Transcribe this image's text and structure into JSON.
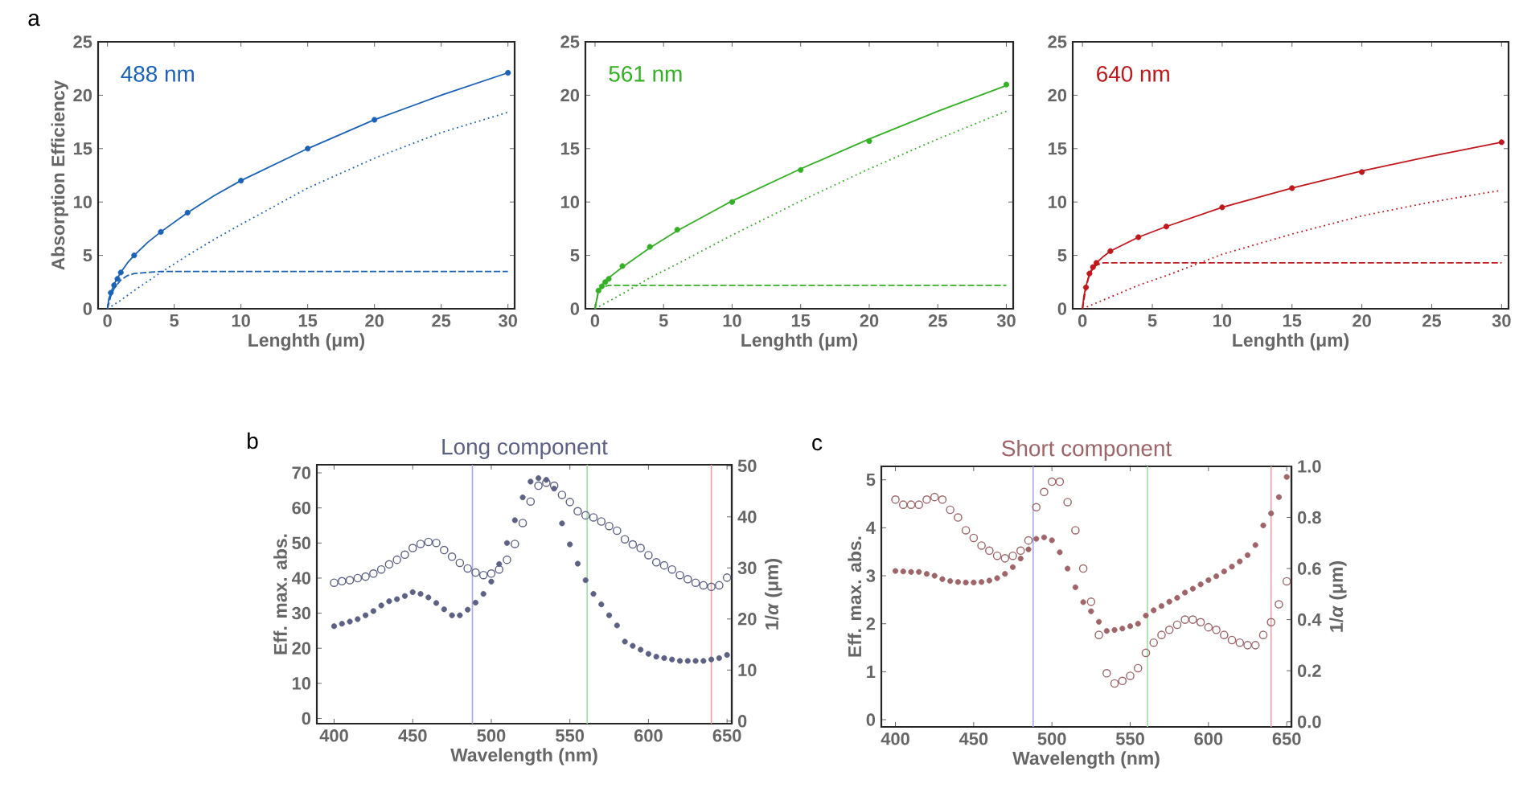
{
  "chart_data": [
    {
      "type": "line",
      "title": "488 nm",
      "xlabel": "Lenghth (μm)",
      "ylabel": "Absorption Efficiency",
      "annotations": [
        "a"
      ],
      "xlim": [
        -0.7,
        30.5
      ],
      "ylim": [
        0,
        25
      ],
      "xticks": [
        0,
        5,
        10,
        15,
        20,
        25,
        30
      ],
      "yticks": [
        0,
        5,
        10,
        15,
        20,
        25
      ],
      "series": [
        {
          "type": "line",
          "line_style": "solid",
          "color": "#1a62b8",
          "x": [
            0,
            0.1,
            0.25,
            0.5,
            0.75,
            1,
            1.5,
            2,
            3,
            4,
            6,
            8,
            10,
            15,
            20,
            25,
            30
          ],
          "values": [
            0,
            0.9,
            1.5,
            2.3,
            2.9,
            3.4,
            4.3,
            5.0,
            6.2,
            7.2,
            9.0,
            10.6,
            12.0,
            15.0,
            17.7,
            20.0,
            22.1
          ]
        },
        {
          "type": "line",
          "line_style": "dashed",
          "color": "#1a62b8",
          "x": [
            0,
            0.25,
            0.5,
            1,
            1.5,
            2,
            3,
            4,
            30
          ],
          "values": [
            0,
            1.2,
            1.9,
            2.7,
            3.1,
            3.3,
            3.4,
            3.5,
            3.5
          ]
        },
        {
          "type": "line",
          "line_style": "dotted",
          "color": "#1a62b8",
          "x": [
            0,
            1,
            2,
            4,
            6,
            8,
            10,
            15,
            20,
            25,
            30
          ],
          "values": [
            0,
            0.8,
            1.7,
            3.4,
            5.0,
            6.5,
            7.9,
            11.3,
            14.1,
            16.5,
            18.4
          ]
        },
        {
          "type": "scatter",
          "marker": "circle",
          "color": "#1a62b8",
          "x": [
            0.25,
            0.5,
            0.75,
            1,
            2,
            4,
            6,
            10,
            15,
            20,
            30
          ],
          "values": [
            1.5,
            2.2,
            2.8,
            3.4,
            5.0,
            7.2,
            9.0,
            12.0,
            15.0,
            17.7,
            22.1
          ]
        }
      ]
    },
    {
      "type": "line",
      "title": "561 nm",
      "xlabel": "Lenghth (μm)",
      "xlim": [
        -0.7,
        30.5
      ],
      "ylim": [
        0,
        25
      ],
      "xticks": [
        0,
        5,
        10,
        15,
        20,
        25,
        30
      ],
      "yticks": [
        0,
        5,
        10,
        15,
        20,
        25
      ],
      "series": [
        {
          "type": "line",
          "line_style": "solid",
          "color": "#33b024",
          "x": [
            0,
            0.25,
            0.5,
            0.75,
            1,
            2,
            4,
            6,
            10,
            15,
            20,
            25,
            30
          ],
          "values": [
            0,
            1.7,
            2.2,
            2.6,
            2.9,
            3.9,
            5.7,
            7.3,
            10.1,
            13.1,
            15.9,
            18.5,
            20.9
          ]
        },
        {
          "type": "line",
          "line_style": "dashed",
          "color": "#33b024",
          "x": [
            0,
            0.25,
            0.5,
            1,
            1.5,
            30
          ],
          "values": [
            0,
            1.6,
            2.0,
            2.2,
            2.2,
            2.2
          ]
        },
        {
          "type": "line",
          "line_style": "dotted",
          "color": "#33b024",
          "x": [
            0,
            1,
            2,
            4,
            6,
            10,
            15,
            20,
            25,
            30
          ],
          "values": [
            0,
            0.7,
            1.4,
            2.9,
            4.2,
            6.9,
            10.1,
            13.1,
            15.9,
            18.5
          ]
        },
        {
          "type": "scatter",
          "marker": "circle",
          "color": "#33b024",
          "x": [
            0.25,
            0.5,
            0.75,
            1,
            2,
            4,
            6,
            10,
            15,
            20,
            30
          ],
          "values": [
            1.7,
            2.1,
            2.5,
            2.8,
            4.0,
            5.8,
            7.4,
            10.0,
            13.0,
            15.7,
            21.0
          ]
        }
      ]
    },
    {
      "type": "line",
      "title": "640 nm",
      "xlabel": "Lenghth (μm)",
      "xlim": [
        -0.7,
        30.5
      ],
      "ylim": [
        0,
        25
      ],
      "xticks": [
        0,
        5,
        10,
        15,
        20,
        25,
        30
      ],
      "yticks": [
        0,
        5,
        10,
        15,
        20,
        25
      ],
      "series": [
        {
          "type": "line",
          "line_style": "solid",
          "color": "#c0171b",
          "x": [
            0,
            0.1,
            0.25,
            0.5,
            0.75,
            1,
            1.5,
            2,
            4,
            6,
            10,
            15,
            20,
            25,
            30
          ],
          "values": [
            0,
            1.2,
            2.1,
            3.3,
            3.9,
            4.3,
            4.9,
            5.4,
            6.7,
            7.7,
            9.5,
            11.3,
            12.9,
            14.3,
            15.6
          ]
        },
        {
          "type": "line",
          "line_style": "dashed",
          "color": "#c0171b",
          "x": [
            0,
            0.25,
            0.5,
            0.75,
            1,
            1.5,
            30
          ],
          "values": [
            0,
            2.0,
            3.2,
            3.8,
            4.1,
            4.3,
            4.3
          ]
        },
        {
          "type": "line",
          "line_style": "dotted",
          "color": "#c0171b",
          "x": [
            0,
            2,
            4,
            6,
            8,
            10,
            15,
            20,
            25,
            30
          ],
          "values": [
            0,
            1.1,
            2.2,
            3.1,
            4.1,
            5.1,
            7.0,
            8.7,
            10.0,
            11.1
          ]
        },
        {
          "type": "scatter",
          "marker": "circle",
          "color": "#c0171b",
          "x": [
            0.25,
            0.5,
            0.75,
            1,
            2,
            4,
            6,
            10,
            15,
            20,
            30
          ],
          "values": [
            2.0,
            3.3,
            3.9,
            4.3,
            5.4,
            6.7,
            7.7,
            9.5,
            11.3,
            12.8,
            15.6
          ]
        }
      ]
    },
    {
      "type": "scatter",
      "title": "Long component",
      "xlabel": "Wavelength (nm)",
      "ylabel": "Eff. max. abs.",
      "y2label": "1/*α* (μm)",
      "annotations": [
        "b"
      ],
      "marker": "circle",
      "xlim": [
        389,
        653
      ],
      "ylim": [
        -1.5,
        72.3
      ],
      "y2lim": [
        -0.5,
        50.2
      ],
      "xticks": [
        400,
        450,
        500,
        550,
        600,
        650
      ],
      "yticks": [
        0,
        10,
        20,
        30,
        40,
        50,
        60,
        70
      ],
      "y2ticks": [
        0,
        10,
        20,
        30,
        40,
        50
      ],
      "x": [
        400,
        405,
        410,
        415,
        420,
        425,
        430,
        435,
        440,
        445,
        450,
        455,
        460,
        465,
        470,
        475,
        480,
        485,
        490,
        495,
        500,
        505,
        510,
        515,
        520,
        525,
        530,
        535,
        540,
        545,
        550,
        555,
        560,
        565,
        570,
        575,
        580,
        585,
        590,
        595,
        600,
        605,
        610,
        615,
        620,
        625,
        630,
        635,
        640,
        645,
        650
      ],
      "ref_lines": [
        {
          "axis": "x",
          "value": 488,
          "color": "#a8a8e8"
        },
        {
          "axis": "x",
          "value": 561,
          "color": "#a0e0a0"
        },
        {
          "axis": "x",
          "value": 640,
          "color": "#e8a0a0"
        }
      ],
      "series": [
        {
          "color": "#5c6184",
          "axis": "y2",
          "values": [
            27.1,
            27.4,
            27.6,
            28.0,
            28.3,
            28.9,
            29.7,
            30.7,
            31.6,
            32.6,
            33.9,
            34.7,
            35.1,
            34.9,
            33.5,
            32.2,
            31.0,
            29.9,
            29.1,
            28.6,
            28.9,
            29.7,
            31.6,
            34.7,
            38.8,
            43.0,
            46.1,
            46.7,
            46.1,
            44.3,
            42.9,
            41.1,
            40.3,
            39.9,
            39.1,
            38.2,
            37.3,
            35.6,
            34.6,
            33.9,
            32.5,
            31.1,
            30.5,
            29.7,
            28.6,
            27.8,
            27.1,
            26.6,
            26.3,
            26.6,
            28.1
          ]
        },
        {
          "color": "#5c6184",
          "values": [
            26.3,
            27.0,
            27.6,
            28.3,
            29.4,
            30.6,
            32.2,
            33.4,
            34.0,
            34.9,
            36.0,
            35.5,
            34.5,
            32.9,
            31.1,
            29.4,
            29.4,
            31.0,
            33.0,
            35.5,
            39.0,
            44.0,
            50.0,
            56.5,
            63.0,
            67.5,
            68.5,
            68.0,
            65.5,
            55.6,
            49.6,
            44.1,
            39.4,
            35.5,
            32.5,
            29.4,
            26.5,
            21.9,
            20.7,
            19.6,
            18.4,
            17.6,
            17.2,
            16.8,
            16.4,
            16.4,
            16.4,
            16.4,
            16.8,
            17.2,
            18.1
          ]
        }
      ]
    },
    {
      "type": "scatter",
      "title": "Short component",
      "xlabel": "Wavelength (nm)",
      "ylabel": "Eff. max. abs.",
      "y2label": "1/*α* (μm)",
      "annotations": [
        "c"
      ],
      "marker": "circle",
      "xlim": [
        391,
        653
      ],
      "ylim": [
        -0.15,
        5.28
      ],
      "y2lim": [
        -0.02,
        1.0
      ],
      "xticks": [
        400,
        450,
        500,
        550,
        600,
        650
      ],
      "yticks": [
        0,
        1,
        2,
        3,
        4,
        5
      ],
      "y2ticks": [
        {
          "value": 0,
          "label": "0.0"
        },
        0.2,
        0.4,
        0.6,
        0.8,
        {
          "value": 1,
          "label": "1.0"
        }
      ],
      "x": [
        400,
        405,
        410,
        415,
        420,
        425,
        430,
        435,
        440,
        445,
        450,
        455,
        460,
        465,
        470,
        475,
        480,
        485,
        490,
        495,
        500,
        505,
        510,
        515,
        520,
        525,
        530,
        535,
        540,
        545,
        550,
        555,
        560,
        565,
        570,
        575,
        580,
        585,
        590,
        595,
        600,
        605,
        610,
        615,
        620,
        625,
        630,
        635,
        640,
        645,
        650
      ],
      "ref_lines": [
        {
          "axis": "x",
          "value": 488,
          "color": "#a8a8e8"
        },
        {
          "axis": "x",
          "value": 561,
          "color": "#a0e0a0"
        },
        {
          "axis": "x",
          "value": 640,
          "color": "#e8a0a0"
        }
      ],
      "series": [
        {
          "color": "#9e6468",
          "axis": "y2",
          "values": [
            0.87,
            0.85,
            0.85,
            0.85,
            0.87,
            0.88,
            0.87,
            0.83,
            0.8,
            0.75,
            0.72,
            0.69,
            0.67,
            0.65,
            0.64,
            0.65,
            0.67,
            0.71,
            0.84,
            0.9,
            0.94,
            0.94,
            0.86,
            0.75,
            0.6,
            0.47,
            0.34,
            0.19,
            0.15,
            0.16,
            0.18,
            0.21,
            0.27,
            0.31,
            0.34,
            0.36,
            0.38,
            0.4,
            0.4,
            0.39,
            0.37,
            0.36,
            0.34,
            0.32,
            0.31,
            0.3,
            0.3,
            0.34,
            0.39,
            0.46,
            0.55
          ]
        },
        {
          "color": "#9e6468",
          "values": [
            3.1,
            3.09,
            3.08,
            3.08,
            3.04,
            3.0,
            2.93,
            2.89,
            2.87,
            2.86,
            2.86,
            2.87,
            2.9,
            2.95,
            3.04,
            3.18,
            3.36,
            3.55,
            3.77,
            3.8,
            3.74,
            3.49,
            3.15,
            2.76,
            2.45,
            2.26,
            2.04,
            1.85,
            1.87,
            1.9,
            1.95,
            2.0,
            2.17,
            2.28,
            2.37,
            2.46,
            2.54,
            2.65,
            2.73,
            2.82,
            2.91,
            2.99,
            3.09,
            3.19,
            3.3,
            3.43,
            3.64,
            4.05,
            4.3,
            4.64,
            5.06
          ]
        }
      ]
    }
  ]
}
